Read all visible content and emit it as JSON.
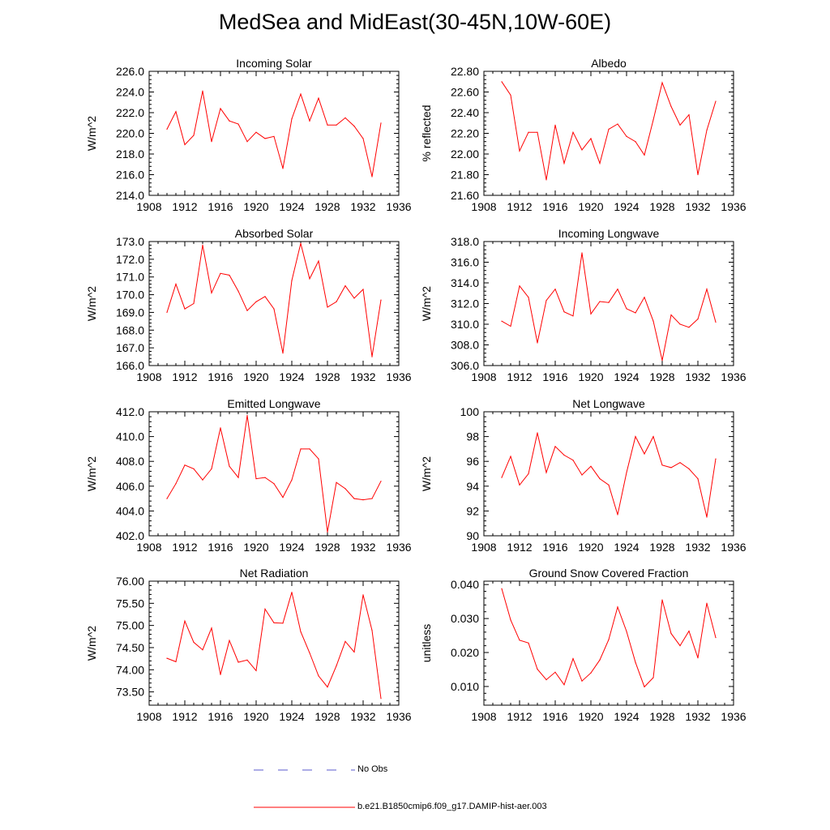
{
  "page_title": "MedSea and MidEast(30-45N,10W-60E)",
  "legend": {
    "items": [
      {
        "label": "No Obs",
        "color": "#5a5acd",
        "dash": "12,18"
      },
      {
        "label": "b.e21.B1850cmip6.f09_g17.DAMIP-hist-aer.003",
        "color": "#ff0000",
        "dash": ""
      }
    ]
  },
  "chart_data": [
    {
      "type": "line",
      "title": "Incoming Solar",
      "xlabel": "",
      "ylabel": "W/m^2",
      "xlim": [
        1908,
        1936
      ],
      "ylim": [
        214,
        226
      ],
      "xticks": [
        "1908",
        "1912",
        "1916",
        "1920",
        "1924",
        "1928",
        "1932",
        "1936"
      ],
      "yticks": [
        "214.0",
        "216.0",
        "218.0",
        "220.0",
        "222.0",
        "224.0",
        "226.0"
      ],
      "grid": false,
      "color": "#ff0000",
      "x": [
        1910,
        1911,
        1912,
        1913,
        1914,
        1915,
        1916,
        1917,
        1918,
        1919,
        1920,
        1921,
        1922,
        1923,
        1924,
        1925,
        1926,
        1927,
        1928,
        1929,
        1930,
        1931,
        1932,
        1933,
        1934
      ],
      "y": [
        220.4,
        222.1,
        218.9,
        219.8,
        224.1,
        219.2,
        222.4,
        221.2,
        220.9,
        219.2,
        220.1,
        219.5,
        219.7,
        216.6,
        221.4,
        223.8,
        221.2,
        223.4,
        220.8,
        220.8,
        221.5,
        220.7,
        219.5,
        215.8,
        221.0
      ]
    },
    {
      "type": "line",
      "title": "Albedo",
      "xlabel": "",
      "ylabel": "% reflected",
      "xlim": [
        1908,
        1936
      ],
      "ylim": [
        21.6,
        22.8
      ],
      "xticks": [
        "1908",
        "1912",
        "1916",
        "1920",
        "1924",
        "1928",
        "1932",
        "1936"
      ],
      "yticks": [
        "21.60",
        "21.80",
        "22.00",
        "22.20",
        "22.40",
        "22.60",
        "22.80"
      ],
      "grid": false,
      "color": "#ff0000",
      "x": [
        1910,
        1911,
        1912,
        1913,
        1914,
        1915,
        1916,
        1917,
        1918,
        1919,
        1920,
        1921,
        1922,
        1923,
        1924,
        1925,
        1926,
        1927,
        1928,
        1929,
        1930,
        1931,
        1932,
        1933,
        1934
      ],
      "y": [
        22.7,
        22.57,
        22.03,
        22.21,
        22.21,
        21.75,
        22.28,
        21.91,
        22.21,
        22.04,
        22.15,
        21.91,
        22.24,
        22.29,
        22.17,
        22.12,
        21.99,
        22.33,
        22.69,
        22.46,
        22.28,
        22.38,
        21.8,
        22.23,
        22.51
      ]
    },
    {
      "type": "line",
      "title": "Absorbed Solar",
      "xlabel": "",
      "ylabel": "W/m^2",
      "xlim": [
        1908,
        1936
      ],
      "ylim": [
        166,
        173
      ],
      "xticks": [
        "1908",
        "1912",
        "1916",
        "1920",
        "1924",
        "1928",
        "1932",
        "1936"
      ],
      "yticks": [
        "166.0",
        "167.0",
        "168.0",
        "169.0",
        "170.0",
        "171.0",
        "172.0",
        "173.0"
      ],
      "grid": false,
      "color": "#ff0000",
      "x": [
        1910,
        1911,
        1912,
        1913,
        1914,
        1915,
        1916,
        1917,
        1918,
        1919,
        1920,
        1921,
        1922,
        1923,
        1924,
        1925,
        1926,
        1927,
        1928,
        1929,
        1930,
        1931,
        1932,
        1933,
        1934
      ],
      "y": [
        169.0,
        170.6,
        169.2,
        169.5,
        172.8,
        170.1,
        171.2,
        171.1,
        170.2,
        169.1,
        169.6,
        169.9,
        169.2,
        166.7,
        170.8,
        172.9,
        170.9,
        171.9,
        169.3,
        169.6,
        170.5,
        169.8,
        170.3,
        166.5,
        169.7
      ]
    },
    {
      "type": "line",
      "title": "Incoming Longwave",
      "xlabel": "",
      "ylabel": "W/m^2",
      "xlim": [
        1908,
        1936
      ],
      "ylim": [
        306,
        318
      ],
      "xticks": [
        "1908",
        "1912",
        "1916",
        "1920",
        "1924",
        "1928",
        "1932",
        "1936"
      ],
      "yticks": [
        "306.0",
        "308.0",
        "310.0",
        "312.0",
        "314.0",
        "316.0",
        "318.0"
      ],
      "grid": false,
      "color": "#ff0000",
      "x": [
        1910,
        1911,
        1912,
        1913,
        1914,
        1915,
        1916,
        1917,
        1918,
        1919,
        1920,
        1921,
        1922,
        1923,
        1924,
        1925,
        1926,
        1927,
        1928,
        1929,
        1930,
        1931,
        1932,
        1933,
        1934
      ],
      "y": [
        310.3,
        309.8,
        313.7,
        312.6,
        308.2,
        312.3,
        313.4,
        311.2,
        310.8,
        316.9,
        311.0,
        312.2,
        312.1,
        313.4,
        311.5,
        311.1,
        312.6,
        310.3,
        306.5,
        310.9,
        310.0,
        309.7,
        310.5,
        313.4,
        310.2
      ]
    },
    {
      "type": "line",
      "title": "Emitted Longwave",
      "xlabel": "",
      "ylabel": "W/m^2",
      "xlim": [
        1908,
        1936
      ],
      "ylim": [
        402,
        412
      ],
      "xticks": [
        "1908",
        "1912",
        "1916",
        "1920",
        "1924",
        "1928",
        "1932",
        "1936"
      ],
      "yticks": [
        "402.0",
        "404.0",
        "406.0",
        "408.0",
        "410.0",
        "412.0"
      ],
      "grid": false,
      "color": "#ff0000",
      "x": [
        1910,
        1911,
        1912,
        1913,
        1914,
        1915,
        1916,
        1917,
        1918,
        1919,
        1920,
        1921,
        1922,
        1923,
        1924,
        1925,
        1926,
        1927,
        1928,
        1929,
        1930,
        1931,
        1932,
        1933,
        1934
      ],
      "y": [
        405.0,
        406.2,
        407.7,
        407.4,
        406.5,
        407.4,
        410.7,
        407.6,
        406.7,
        411.7,
        406.6,
        406.7,
        406.2,
        405.1,
        406.5,
        409.0,
        409.0,
        408.2,
        402.3,
        406.3,
        405.8,
        405.0,
        404.9,
        405.0,
        406.4
      ]
    },
    {
      "type": "line",
      "title": "Net Longwave",
      "xlabel": "",
      "ylabel": "W/m^2",
      "xlim": [
        1908,
        1936
      ],
      "ylim": [
        90,
        100
      ],
      "xticks": [
        "1908",
        "1912",
        "1916",
        "1920",
        "1924",
        "1928",
        "1932",
        "1936"
      ],
      "yticks": [
        "90",
        "92",
        "94",
        "96",
        "98",
        "100"
      ],
      "grid": false,
      "color": "#ff0000",
      "x": [
        1910,
        1911,
        1912,
        1913,
        1914,
        1915,
        1916,
        1917,
        1918,
        1919,
        1920,
        1921,
        1922,
        1923,
        1924,
        1925,
        1926,
        1927,
        1928,
        1929,
        1930,
        1931,
        1932,
        1933,
        1934
      ],
      "y": [
        94.7,
        96.4,
        94.1,
        95.0,
        98.3,
        95.1,
        97.2,
        96.5,
        96.1,
        94.9,
        95.6,
        94.6,
        94.1,
        91.7,
        95.1,
        98.0,
        96.6,
        98.0,
        95.7,
        95.5,
        95.9,
        95.4,
        94.6,
        91.5,
        96.2
      ]
    },
    {
      "type": "line",
      "title": "Net Radiation",
      "xlabel": "",
      "ylabel": "W/m^2",
      "xlim": [
        1908,
        1936
      ],
      "ylim": [
        73.2,
        76.0
      ],
      "xticks": [
        "1908",
        "1912",
        "1916",
        "1920",
        "1924",
        "1928",
        "1932",
        "1936"
      ],
      "yticks": [
        "73.50",
        "74.00",
        "74.50",
        "75.00",
        "75.50",
        "76.00"
      ],
      "grid": false,
      "color": "#ff0000",
      "x": [
        1910,
        1911,
        1912,
        1913,
        1914,
        1915,
        1916,
        1917,
        1918,
        1919,
        1920,
        1921,
        1922,
        1923,
        1924,
        1925,
        1926,
        1927,
        1928,
        1929,
        1930,
        1931,
        1932,
        1933,
        1934
      ],
      "y": [
        74.26,
        74.18,
        75.1,
        74.62,
        74.45,
        74.94,
        73.89,
        74.66,
        74.17,
        74.22,
        73.98,
        75.37,
        75.06,
        75.05,
        75.75,
        74.86,
        74.38,
        73.86,
        73.61,
        74.09,
        74.64,
        74.4,
        75.69,
        74.89,
        73.35
      ]
    },
    {
      "type": "line",
      "title": "Ground Snow Covered Fraction",
      "xlabel": "",
      "ylabel": "unitless",
      "xlim": [
        1908,
        1936
      ],
      "ylim": [
        0.0045,
        0.041
      ],
      "xticks": [
        "1908",
        "1912",
        "1916",
        "1920",
        "1924",
        "1928",
        "1932",
        "1936"
      ],
      "yticks": [
        "0.010",
        "0.020",
        "0.030",
        "0.040"
      ],
      "grid": false,
      "color": "#ff0000",
      "x": [
        1910,
        1911,
        1912,
        1913,
        1914,
        1915,
        1916,
        1917,
        1918,
        1919,
        1920,
        1921,
        1922,
        1923,
        1924,
        1925,
        1926,
        1927,
        1928,
        1929,
        1930,
        1931,
        1932,
        1933,
        1934
      ],
      "y": [
        0.0388,
        0.0296,
        0.0236,
        0.0228,
        0.0151,
        0.012,
        0.0142,
        0.0105,
        0.0182,
        0.0116,
        0.014,
        0.0178,
        0.0238,
        0.0334,
        0.0262,
        0.0171,
        0.0099,
        0.0126,
        0.0355,
        0.0256,
        0.022,
        0.0263,
        0.0184,
        0.0345,
        0.0244
      ]
    }
  ]
}
